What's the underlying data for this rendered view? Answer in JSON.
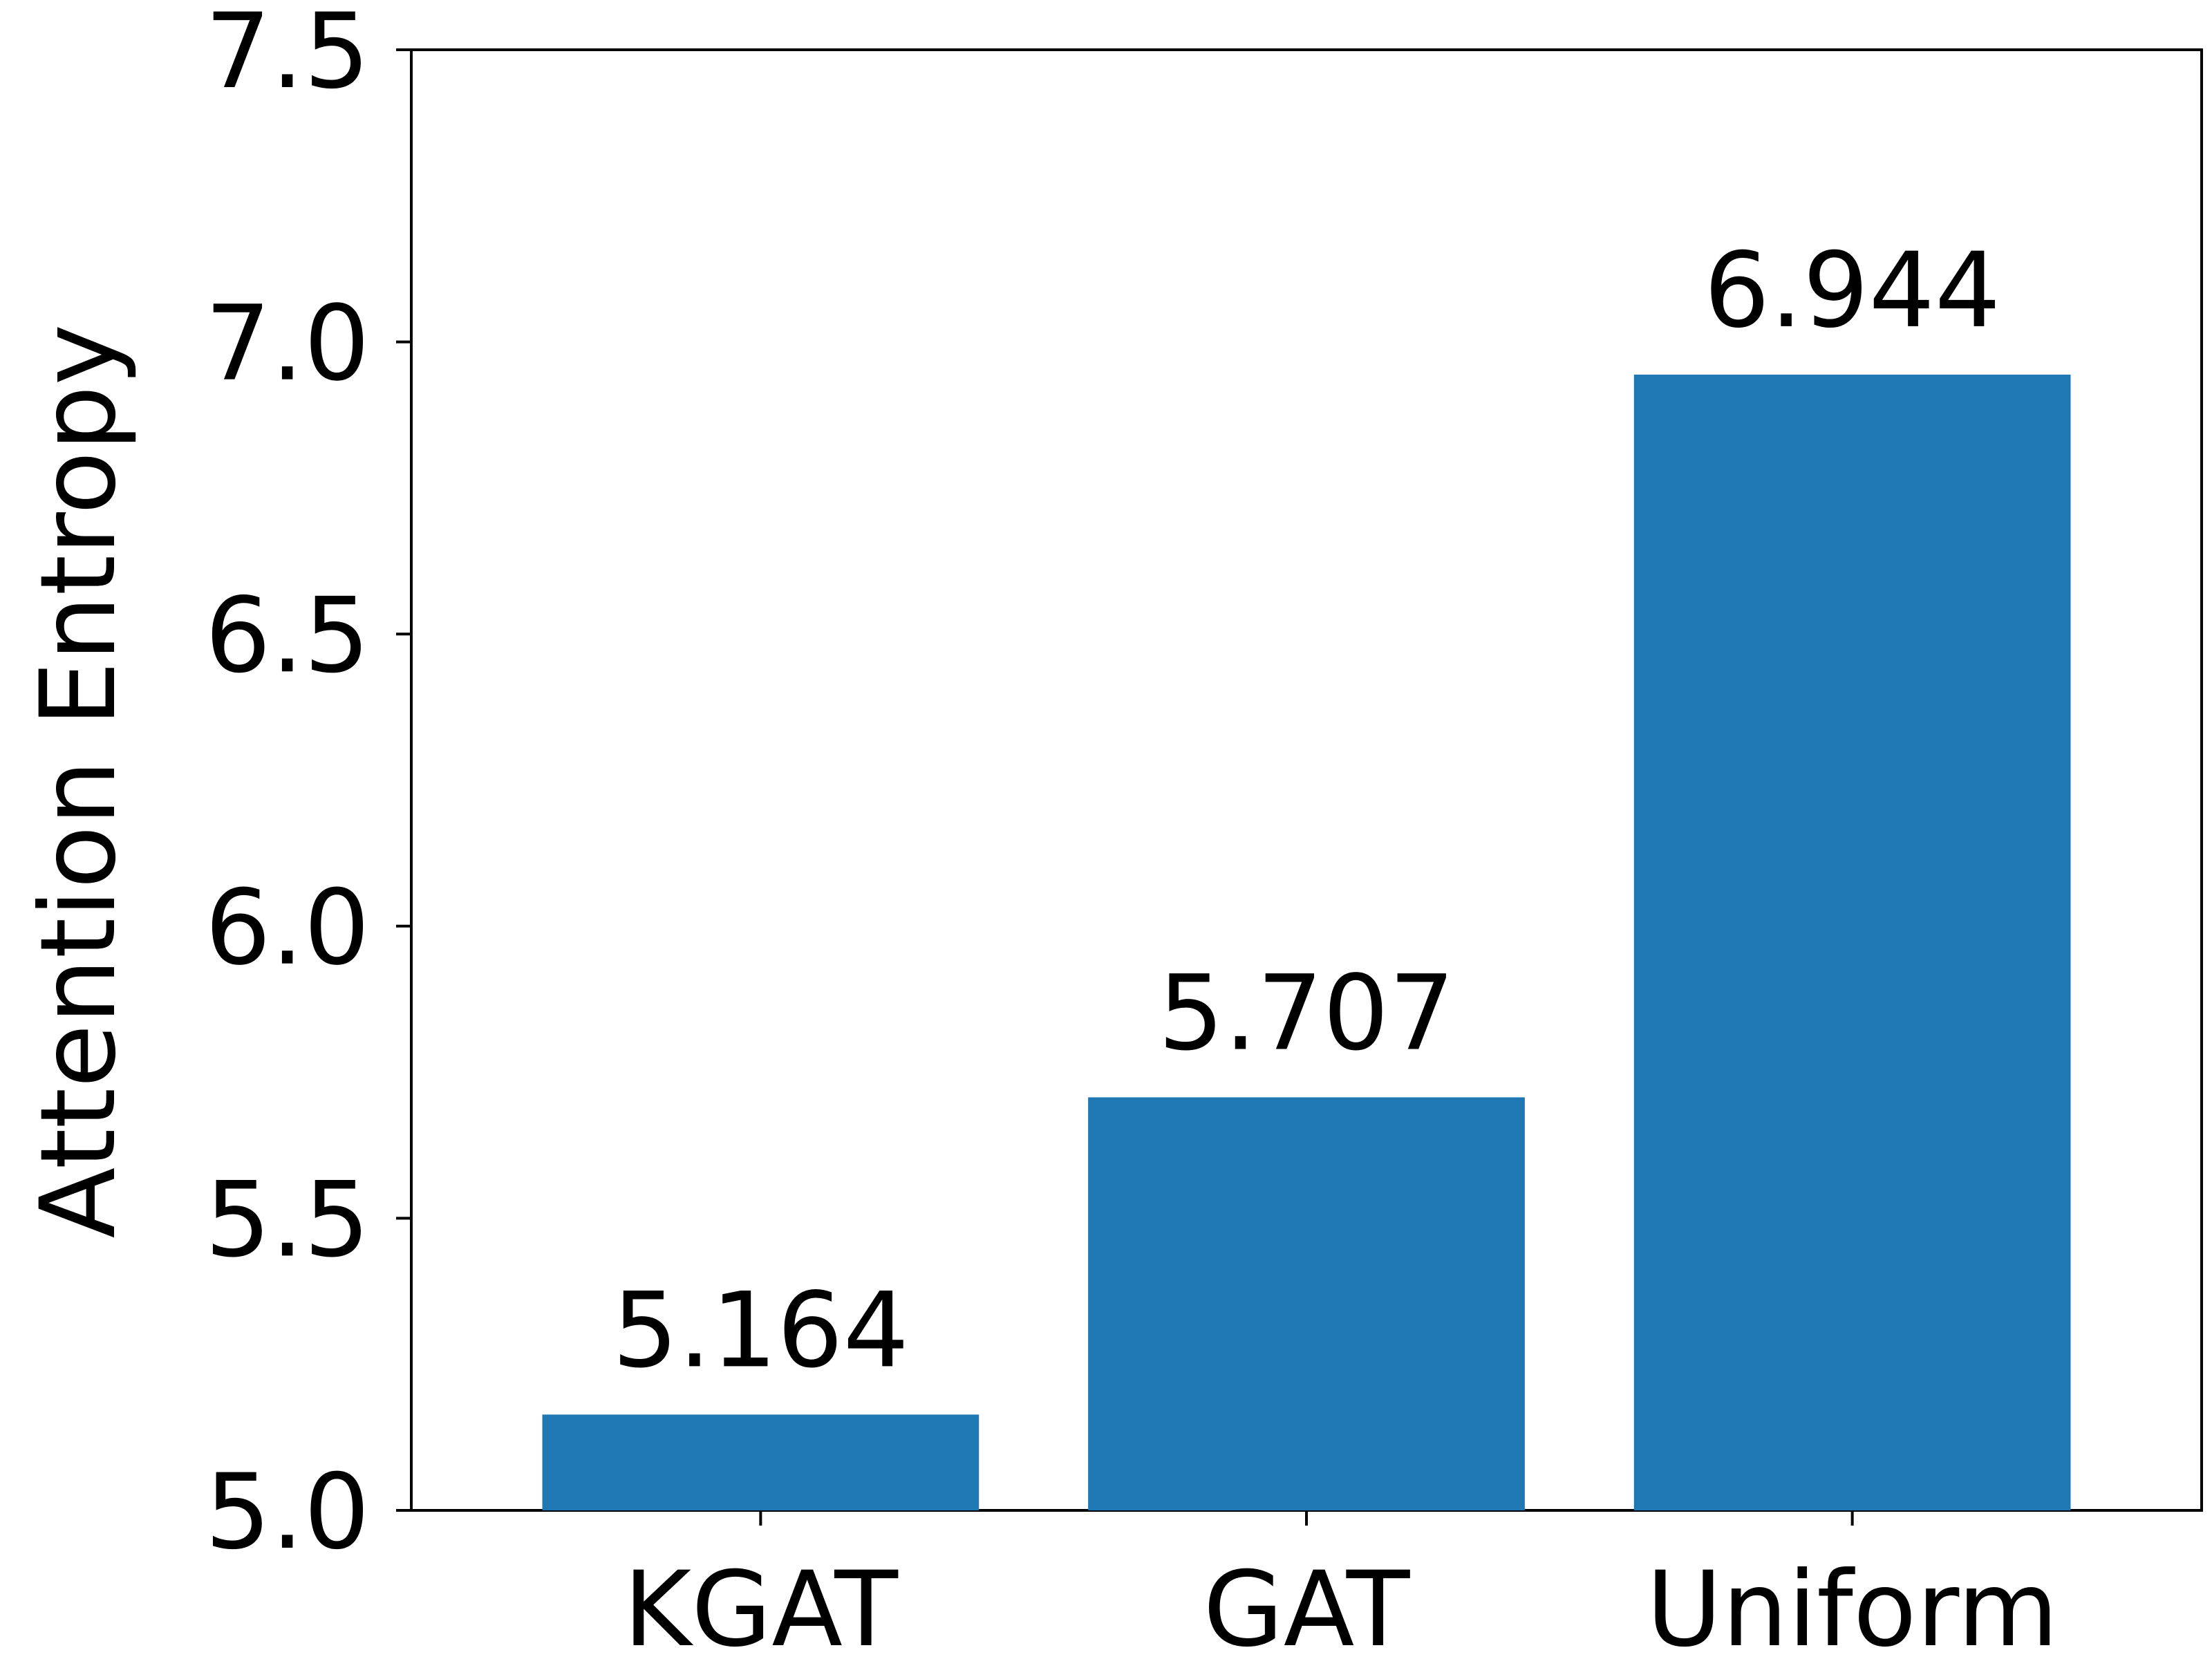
{
  "chart_data": {
    "type": "bar",
    "title": "",
    "xlabel": "",
    "ylabel": "Attention Entropy",
    "categories": [
      "KGAT",
      "GAT",
      "Uniform"
    ],
    "values": [
      5.164,
      5.707,
      6.944
    ],
    "value_labels": [
      "5.164",
      "5.707",
      "6.944"
    ],
    "ylim": [
      5.0,
      7.5
    ],
    "yticks": [
      5.0,
      5.5,
      6.0,
      6.5,
      7.0,
      7.5
    ],
    "ytick_labels": [
      "5.0",
      "5.5",
      "6.0",
      "6.5",
      "7.0",
      "7.5"
    ],
    "bar_color": "#1f77b4",
    "grid": false,
    "legend": "none"
  }
}
